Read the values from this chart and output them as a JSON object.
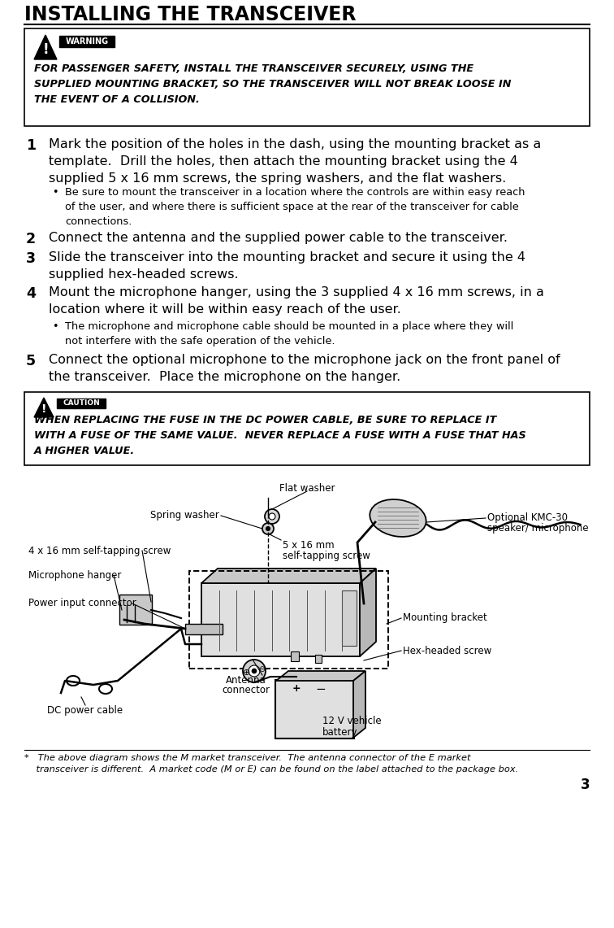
{
  "title": "INSTALLING THE TRANSCEIVER",
  "page_number": "3",
  "warning_line1": "FOR PASSENGER SAFETY, INSTALL THE TRANSCEIVER SECURELY, USING THE",
  "warning_line2": "SUPPLIED MOUNTING BRACKET, SO THE TRANSCEIVER WILL NOT BREAK LOOSE IN",
  "warning_line3": "THE EVENT OF A COLLISION.",
  "step1_num": "1",
  "step1_text": "Mark the position of the holes in the dash, using the mounting bracket as a\ntemplate.  Drill the holes, then attach the mounting bracket using the 4\nsupplied 5 x 16 mm screws, the spring washers, and the flat washers.",
  "step1_bullet": "Be sure to mount the transceiver in a location where the controls are within easy reach\nof the user, and where there is sufficient space at the rear of the transceiver for cable\nconnections.",
  "step2_num": "2",
  "step2_text": "Connect the antenna and the supplied power cable to the transceiver.",
  "step3_num": "3",
  "step3_text": "Slide the transceiver into the mounting bracket and secure it using the 4\nsupplied hex-headed screws.",
  "step4_num": "4",
  "step4_text": "Mount the microphone hanger, using the 3 supplied 4 x 16 mm screws, in a\nlocation where it will be within easy reach of the user.",
  "step4_bullet": "The microphone and microphone cable should be mounted in a place where they will\nnot interfere with the safe operation of the vehicle.",
  "step5_num": "5",
  "step5_text": "Connect the optional microphone to the microphone jack on the front panel of\nthe transceiver.  Place the microphone on the hanger.",
  "caution_line1": "WHEN REPLACING THE FUSE IN THE DC POWER CABLE, BE SURE TO REPLACE IT",
  "caution_line2": "WITH A FUSE OF THE SAME VALUE.  NEVER REPLACE A FUSE WITH A FUSE THAT HAS",
  "caution_line3": "A HIGHER VALUE.",
  "lbl_flat_washer": "Flat washer",
  "lbl_spring_washer": "Spring washer",
  "lbl_4x16": "4 x 16 mm self-tapping screw",
  "lbl_mic_hanger": "Microphone hanger",
  "lbl_power_input": "Power input connector",
  "lbl_5x16_line1": "5 x 16 mm",
  "lbl_5x16_line2": "self-tapping screw",
  "lbl_optional_mic_line1": "Optional KMC-30",
  "lbl_optional_mic_line2": "speaker/ microphone",
  "lbl_mounting_bracket": "Mounting bracket",
  "lbl_hex_screw": "Hex-headed screw",
  "lbl_antenna_line1": "Antenna",
  "lbl_antenna_line2": "connector",
  "lbl_dc_cable": "DC power cable",
  "lbl_battery_line1": "12 V vehicle",
  "lbl_battery_line2": "battery",
  "footnote_line1": "*   The above diagram shows the M market transceiver.  The antenna connector of the E market",
  "footnote_line2": "    transceiver is different.  A market code (M or E) can be found on the label attached to the package box.",
  "bg_color": "#ffffff"
}
